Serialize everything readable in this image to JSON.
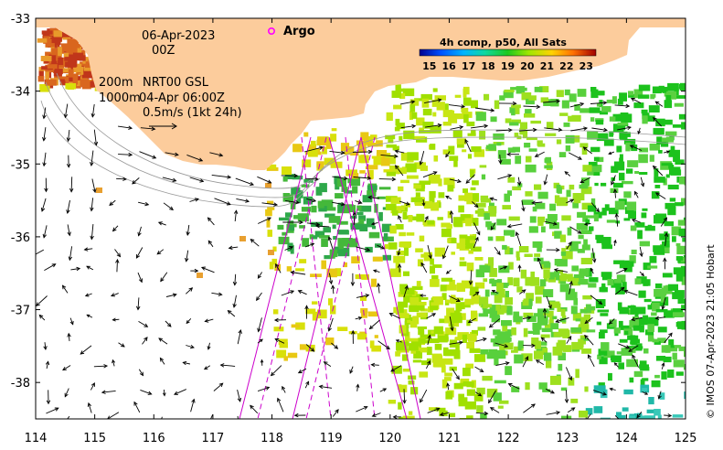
{
  "map": {
    "date_label": "06-Apr-2023",
    "hour_label": "00Z",
    "argo_label": "Argo",
    "depth_label_1": "200m",
    "depth_label_2": "1000m",
    "product_label": "NRT00 GSL",
    "product_date": "04-Apr 06:00Z",
    "scale_label": "0.5m/s (1kt 24h)",
    "credit": "© IMOS 07-Apr-2023 21:05 Hobart"
  },
  "axes": {
    "x_ticks": [
      "114",
      "115",
      "116",
      "117",
      "118",
      "119",
      "120",
      "121",
      "122",
      "123",
      "124",
      "125"
    ],
    "y_ticks": [
      "-33",
      "-34",
      "-35",
      "-36",
      "-37",
      "-38"
    ],
    "lon_range": [
      114,
      125
    ],
    "lat_range": [
      -38.5,
      -33
    ]
  },
  "legend": {
    "title": "4h comp, p50, All Sats",
    "ticks": [
      "15",
      "16",
      "17",
      "18",
      "19",
      "20",
      "21",
      "22",
      "23"
    ],
    "range": [
      14.5,
      23.5
    ]
  },
  "colors": {
    "land": "#fccc9c",
    "arrow": "#000000",
    "track": "#cc00cc",
    "argo": "#ff00ff",
    "contour": "#9a9a9a"
  }
}
